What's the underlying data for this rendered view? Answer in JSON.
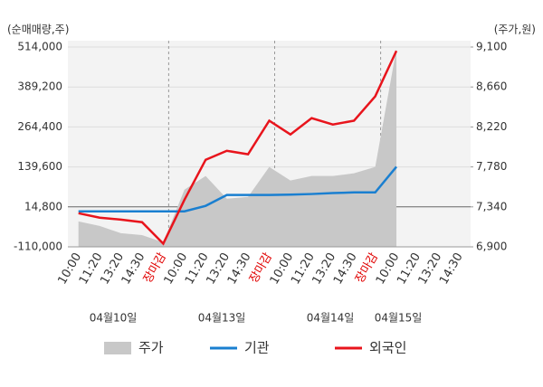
{
  "chart_data": {
    "type": "line",
    "y_axis_title": "(순매매량,주)",
    "y2_axis_title": "(주가,원)",
    "categories": [
      "10:00",
      "11:20",
      "13:20",
      "14:30",
      "장마감",
      "10:00",
      "11:20",
      "13:20",
      "14:30",
      "장마감",
      "10:00",
      "11:20",
      "13:20",
      "14:30",
      "장마감",
      "10:00",
      "11:20",
      "13:20",
      "14:30"
    ],
    "category_colors": [
      "#333333",
      "#333333",
      "#333333",
      "#333333",
      "#e00000",
      "#333333",
      "#333333",
      "#333333",
      "#333333",
      "#e00000",
      "#333333",
      "#333333",
      "#333333",
      "#333333",
      "#e00000",
      "#333333",
      "#333333",
      "#333333",
      "#333333"
    ],
    "date_labels": [
      "04월10일",
      "04월13일",
      "04월14일",
      "04월15일"
    ],
    "ylim": [
      -110000,
      514000
    ],
    "yticks": [
      {
        "value": -110000,
        "label": "-110,000"
      },
      {
        "value": 14800,
        "label": "14,800"
      },
      {
        "value": 139600,
        "label": "139,600"
      },
      {
        "value": 264400,
        "label": "264,400"
      },
      {
        "value": 389200,
        "label": "389,200"
      },
      {
        "value": 514000,
        "label": "514,000"
      }
    ],
    "y2lim": [
      6900,
      9100
    ],
    "y2ticks": [
      {
        "value": 6900,
        "label": "6,900"
      },
      {
        "value": 7340,
        "label": "7,340"
      },
      {
        "value": 7780,
        "label": "7,780"
      },
      {
        "value": 8220,
        "label": "8,220"
      },
      {
        "value": 8660,
        "label": "8,660"
      },
      {
        "value": 9100,
        "label": "9,100"
      }
    ],
    "grid": true,
    "series": [
      {
        "name": "주가",
        "color": "#c8c8c8",
        "axis": "y2",
        "kind": "area",
        "values": [
          7180,
          7130,
          7050,
          7030,
          6950,
          7530,
          7680,
          7430,
          7450,
          7780,
          7630,
          7680,
          7680,
          7710,
          7780,
          9080,
          null,
          null,
          null
        ]
      },
      {
        "name": "기관",
        "color": "#1a7fd0",
        "kind": "line",
        "values": [
          1000,
          1000,
          1000,
          1000,
          1000,
          1000,
          18000,
          52000,
          52000,
          52000,
          53000,
          55000,
          58000,
          60000,
          60000,
          140000,
          null,
          null,
          null
        ]
      },
      {
        "name": "외국인",
        "color": "#e8141c",
        "kind": "line",
        "values": [
          -5000,
          -19000,
          -25000,
          -33000,
          -100000,
          37000,
          162000,
          190000,
          179000,
          284000,
          241000,
          292000,
          272000,
          284000,
          360000,
          502000,
          null,
          null,
          null
        ]
      }
    ]
  }
}
